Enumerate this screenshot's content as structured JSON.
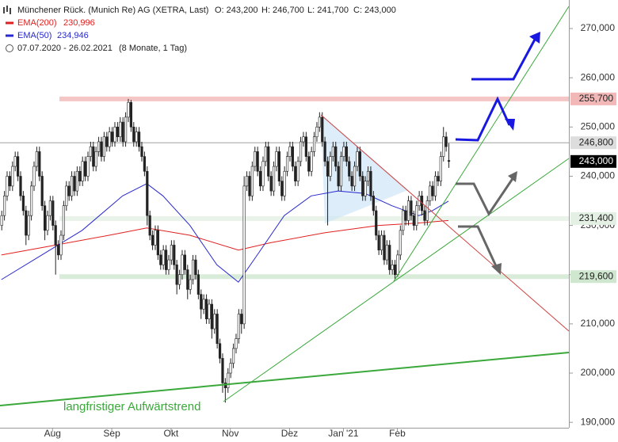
{
  "chart_data": {
    "type": "candlestick",
    "title": "Münchener Rück. (Munich Re) AG (XETRA, Last)",
    "ohlc_summary": [
      "O: 243,200",
      "H: 246,700",
      "L: 241,700",
      "C: 243,000"
    ],
    "date_range": "07.07.2020 - 26.02.2021",
    "period": "(8 Monate, 1 Tag)",
    "annotation": "langfristiger Aufwärtstrend",
    "xlim": [
      -0.5,
      210.7
    ],
    "ylim": [
      188900,
      275800
    ],
    "xticks": [
      {
        "value": 19,
        "label": "Aug"
      },
      {
        "value": 41,
        "label": "Sep"
      },
      {
        "value": 63,
        "label": "Okt"
      },
      {
        "value": 85,
        "label": "Nov"
      },
      {
        "value": 107,
        "label": "Dez"
      },
      {
        "value": 127,
        "label": "Jan '21"
      },
      {
        "value": 147,
        "label": "Feb"
      }
    ],
    "yticks": [
      {
        "value": 190000,
        "label": "190,000"
      },
      {
        "value": 200000,
        "label": "200,000"
      },
      {
        "value": 210000,
        "label": "210,000"
      },
      {
        "value": 220000,
        "label": "220,000"
      },
      {
        "value": 230000,
        "label": "230,000"
      },
      {
        "value": 240000,
        "label": "240,000"
      },
      {
        "value": 250000,
        "label": "250,000"
      },
      {
        "value": 260000,
        "label": "260,000"
      },
      {
        "value": 270000,
        "label": "270,000"
      }
    ],
    "levels": [
      {
        "value": 255700,
        "label": "255,700",
        "color": "#f2b8b8"
      },
      {
        "value": 246800,
        "label": "246,800",
        "color": "#dddddd"
      },
      {
        "value": 243000,
        "label": "243,000",
        "color": "#000000"
      },
      {
        "value": 231400,
        "label": "231,400",
        "color": "#e3f0e3"
      },
      {
        "value": 219600,
        "label": "219,600",
        "color": "#cfe6cf"
      }
    ],
    "series": [
      {
        "name": "EMA(200)",
        "color": "#e02020",
        "value_label": "230,996",
        "x": [
          0,
          20,
          40,
          54,
          70,
          88,
          100,
          120,
          140,
          155,
          166
        ],
        "values": [
          224000,
          226000,
          228000,
          229500,
          228000,
          225000,
          226500,
          228500,
          230000,
          230500,
          230996
        ]
      },
      {
        "name": "EMA(50)",
        "color": "#2828d0",
        "value_label": "234,946",
        "x": [
          0,
          15,
          30,
          45,
          54,
          60,
          70,
          80,
          88,
          95,
          105,
          115,
          125,
          135,
          145,
          155,
          160,
          166
        ],
        "values": [
          219000,
          224000,
          229000,
          236000,
          238500,
          236000,
          230000,
          222000,
          218500,
          224000,
          232000,
          236000,
          237000,
          236500,
          234000,
          232000,
          233000,
          234946
        ]
      }
    ],
    "ohlc": [
      [
        230000,
        233000,
        229000,
        232000
      ],
      [
        232000,
        237000,
        231000,
        236000
      ],
      [
        236000,
        241000,
        235000,
        240000
      ],
      [
        240000,
        241000,
        237000,
        238000
      ],
      [
        238000,
        243000,
        237000,
        242000
      ],
      [
        242000,
        245000,
        241000,
        244000
      ],
      [
        244000,
        245000,
        239000,
        240000
      ],
      [
        240000,
        241000,
        235000,
        236000
      ],
      [
        236000,
        237000,
        232000,
        233000
      ],
      [
        233000,
        234000,
        226000,
        228000
      ],
      [
        228000,
        233000,
        227000,
        232000
      ],
      [
        232000,
        239000,
        231000,
        238000
      ],
      [
        238000,
        243000,
        237000,
        242000
      ],
      [
        242000,
        246000,
        241000,
        245000
      ],
      [
        245000,
        246000,
        239000,
        240000
      ],
      [
        240000,
        241000,
        233000,
        234000
      ],
      [
        234000,
        235000,
        227000,
        229000
      ],
      [
        229000,
        233000,
        228000,
        232000
      ],
      [
        232000,
        236000,
        231000,
        235000
      ],
      [
        235000,
        236000,
        229000,
        230000
      ],
      [
        230000,
        231000,
        220000,
        226000
      ],
      [
        226000,
        227000,
        223000,
        224000
      ],
      [
        224000,
        229000,
        223000,
        228000
      ],
      [
        228000,
        235000,
        227000,
        234000
      ],
      [
        234000,
        239000,
        233000,
        238000
      ],
      [
        238000,
        239000,
        235000,
        236000
      ],
      [
        236000,
        241000,
        235000,
        240000
      ],
      [
        240000,
        241000,
        236000,
        237000
      ],
      [
        237000,
        242000,
        236000,
        241000
      ],
      [
        241000,
        242000,
        238000,
        239000
      ],
      [
        239000,
        244000,
        238000,
        243000
      ],
      [
        243000,
        244000,
        239000,
        240000
      ],
      [
        240000,
        245000,
        239000,
        244000
      ],
      [
        244000,
        247000,
        243000,
        246000
      ],
      [
        246000,
        247000,
        241000,
        242000
      ],
      [
        242000,
        246000,
        241000,
        245000
      ],
      [
        245000,
        248000,
        244000,
        247000
      ],
      [
        247000,
        248000,
        243000,
        244000
      ],
      [
        244000,
        249000,
        243000,
        248000
      ],
      [
        248000,
        249000,
        245000,
        246000
      ],
      [
        246000,
        250000,
        245000,
        249000
      ],
      [
        249000,
        250000,
        246000,
        247000
      ],
      [
        247000,
        251000,
        246000,
        250000
      ],
      [
        250000,
        251000,
        247000,
        248000
      ],
      [
        248000,
        252000,
        247000,
        251000
      ],
      [
        251000,
        252000,
        246000,
        247000
      ],
      [
        247000,
        253000,
        246000,
        252000
      ],
      [
        252000,
        255700,
        251000,
        255000
      ],
      [
        255000,
        255500,
        249000,
        250000
      ],
      [
        250000,
        251000,
        246000,
        247000
      ],
      [
        247000,
        250000,
        246000,
        249000
      ],
      [
        249000,
        250000,
        245000,
        246000
      ],
      [
        246000,
        247000,
        243000,
        244000
      ],
      [
        244000,
        245000,
        240000,
        241000
      ],
      [
        241000,
        242000,
        230000,
        232000
      ],
      [
        232000,
        233000,
        227000,
        228000
      ],
      [
        228000,
        229000,
        225000,
        226000
      ],
      [
        226000,
        230000,
        225000,
        229000
      ],
      [
        229000,
        230000,
        223000,
        224000
      ],
      [
        224000,
        225000,
        221000,
        222000
      ],
      [
        222000,
        226000,
        221000,
        225000
      ],
      [
        225000,
        226000,
        220000,
        221000
      ],
      [
        221000,
        224000,
        220000,
        223000
      ],
      [
        223000,
        227000,
        222000,
        226000
      ],
      [
        226000,
        227000,
        221000,
        222000
      ],
      [
        222000,
        223000,
        216000,
        218000
      ],
      [
        218000,
        221000,
        217000,
        220000
      ],
      [
        220000,
        225000,
        219000,
        224000
      ],
      [
        224000,
        225000,
        220000,
        221000
      ],
      [
        221000,
        222000,
        215000,
        217000
      ],
      [
        217000,
        220000,
        216000,
        219000
      ],
      [
        219000,
        224000,
        218000,
        223000
      ],
      [
        223000,
        224000,
        219000,
        220000
      ],
      [
        220000,
        221000,
        215000,
        216000
      ],
      [
        216000,
        217000,
        211000,
        213000
      ],
      [
        213000,
        216000,
        212000,
        215000
      ],
      [
        215000,
        216000,
        210000,
        211000
      ],
      [
        211000,
        215000,
        210000,
        214000
      ],
      [
        214000,
        215000,
        207000,
        209000
      ],
      [
        209000,
        213000,
        208000,
        212000
      ],
      [
        212000,
        213000,
        205000,
        206000
      ],
      [
        206000,
        207000,
        202000,
        203000
      ],
      [
        203000,
        204000,
        196000,
        198000
      ],
      [
        198000,
        199000,
        194000,
        197000
      ],
      [
        197000,
        201000,
        196000,
        200000
      ],
      [
        200000,
        203000,
        199000,
        202000
      ],
      [
        202000,
        206000,
        201000,
        205000
      ],
      [
        205000,
        208000,
        204000,
        207000
      ],
      [
        207000,
        213000,
        206000,
        212000
      ],
      [
        212000,
        213000,
        208000,
        210000
      ],
      [
        210000,
        240000,
        209000,
        238000
      ],
      [
        238000,
        241000,
        237000,
        240000
      ],
      [
        240000,
        241000,
        235000,
        236000
      ],
      [
        236000,
        243000,
        235000,
        242000
      ],
      [
        242000,
        246000,
        241000,
        245000
      ],
      [
        245000,
        246000,
        240000,
        241000
      ],
      [
        241000,
        242000,
        237000,
        238000
      ],
      [
        238000,
        244000,
        237000,
        243000
      ],
      [
        243000,
        247000,
        242000,
        246000
      ],
      [
        246000,
        247000,
        239000,
        240000
      ],
      [
        240000,
        241000,
        236000,
        237000
      ],
      [
        237000,
        243000,
        236000,
        242000
      ],
      [
        242000,
        246000,
        241000,
        245000
      ],
      [
        245000,
        246000,
        238000,
        239000
      ],
      [
        239000,
        240000,
        235000,
        236000
      ],
      [
        236000,
        242000,
        235000,
        241000
      ],
      [
        241000,
        245000,
        240000,
        244000
      ],
      [
        244000,
        247000,
        243000,
        246000
      ],
      [
        246000,
        247000,
        241000,
        242000
      ],
      [
        242000,
        243000,
        238000,
        239000
      ],
      [
        239000,
        244000,
        238000,
        243000
      ],
      [
        243000,
        248000,
        242000,
        247000
      ],
      [
        247000,
        249000,
        246000,
        248000
      ],
      [
        248000,
        249000,
        243000,
        244000
      ],
      [
        244000,
        245000,
        240000,
        241000
      ],
      [
        241000,
        246000,
        240000,
        245000
      ],
      [
        245000,
        249000,
        244000,
        248000
      ],
      [
        248000,
        251000,
        247000,
        250000
      ],
      [
        250000,
        253000,
        249000,
        252000
      ],
      [
        252000,
        253000,
        246000,
        247000
      ],
      [
        247000,
        248000,
        242000,
        243000
      ],
      [
        243000,
        244000,
        230000,
        240000
      ],
      [
        240000,
        245000,
        239000,
        244000
      ],
      [
        244000,
        247000,
        243000,
        246000
      ],
      [
        246000,
        247000,
        241000,
        242000
      ],
      [
        242000,
        243000,
        237000,
        238000
      ],
      [
        238000,
        245000,
        237000,
        244000
      ],
      [
        244000,
        247000,
        243000,
        246000
      ],
      [
        246000,
        247000,
        242000,
        243000
      ],
      [
        243000,
        244000,
        239000,
        240000
      ],
      [
        240000,
        241000,
        237000,
        238000
      ],
      [
        238000,
        243000,
        237000,
        242000
      ],
      [
        242000,
        246000,
        241000,
        245000
      ],
      [
        245000,
        246000,
        239000,
        240000
      ],
      [
        240000,
        241000,
        235000,
        236000
      ],
      [
        236000,
        240000,
        235000,
        239000
      ],
      [
        239000,
        242000,
        238000,
        241000
      ],
      [
        241000,
        242000,
        235000,
        236000
      ],
      [
        236000,
        237000,
        232000,
        233000
      ],
      [
        233000,
        234000,
        227000,
        228000
      ],
      [
        228000,
        229000,
        224000,
        225000
      ],
      [
        225000,
        229000,
        224000,
        228000
      ],
      [
        228000,
        229000,
        222000,
        223000
      ],
      [
        223000,
        227000,
        222000,
        226000
      ],
      [
        226000,
        227000,
        220000,
        221000
      ],
      [
        221000,
        223000,
        220000,
        222000
      ],
      [
        222000,
        223000,
        219000,
        220000
      ],
      [
        220000,
        225000,
        219600,
        224000
      ],
      [
        224000,
        230000,
        223000,
        229000
      ],
      [
        229000,
        234000,
        228000,
        233000
      ],
      [
        233000,
        234000,
        230000,
        231000
      ],
      [
        231000,
        236000,
        230000,
        235000
      ],
      [
        235000,
        236000,
        231000,
        232000
      ],
      [
        232000,
        233000,
        229000,
        230000
      ],
      [
        230000,
        235000,
        229000,
        234000
      ],
      [
        234000,
        237000,
        233000,
        236000
      ],
      [
        236000,
        237000,
        232000,
        233000
      ],
      [
        233000,
        234000,
        230000,
        231000
      ],
      [
        231000,
        236000,
        230000,
        235000
      ],
      [
        235000,
        239000,
        234000,
        238000
      ],
      [
        238000,
        239000,
        235000,
        236000
      ],
      [
        236000,
        241000,
        235000,
        240000
      ],
      [
        240000,
        241000,
        238000,
        239000
      ],
      [
        239000,
        245000,
        238000,
        244000
      ],
      [
        244000,
        250000,
        243000,
        248000
      ],
      [
        248000,
        249000,
        245000,
        246000
      ],
      [
        243200,
        246700,
        241700,
        243000
      ]
    ]
  }
}
